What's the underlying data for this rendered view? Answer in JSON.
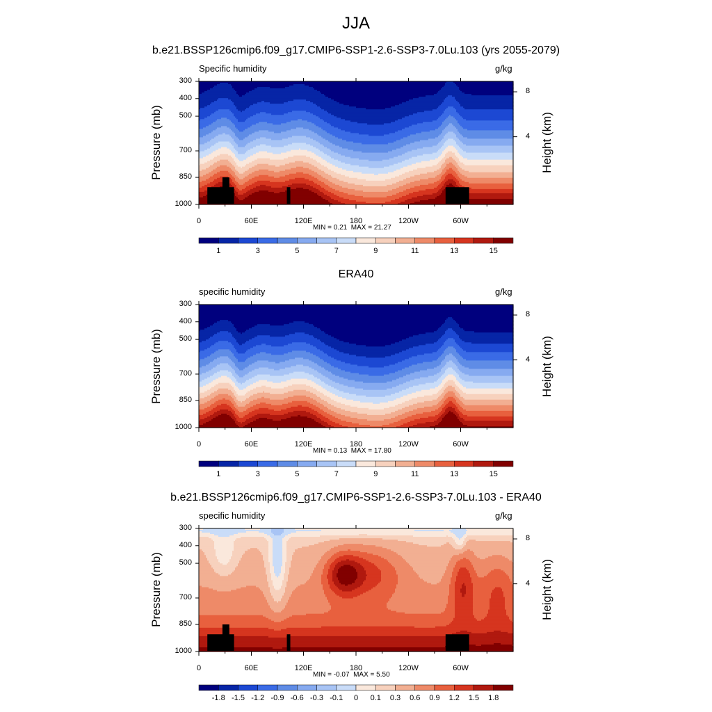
{
  "figure_title": "JJA",
  "palette_seq": [
    "#00007e",
    "#0625a6",
    "#1c48d3",
    "#3a6be6",
    "#5f8ce6",
    "#86aaf0",
    "#a8c4f5",
    "#c9dcf8",
    "#fae8dc",
    "#f7d1bd",
    "#f2af92",
    "#ee8a68",
    "#e8603e",
    "#d6351f",
    "#b0190f",
    "#810000"
  ],
  "palette_div": [
    "#00007e",
    "#0625a6",
    "#1c48d3",
    "#3a6be6",
    "#5f8ce6",
    "#86aaf0",
    "#a8c4f5",
    "#c9dcf8",
    "#fae8dc",
    "#f7d1bd",
    "#f2af92",
    "#ee8a68",
    "#e8603e",
    "#d6351f",
    "#b0190f",
    "#810000"
  ],
  "chart_data": [
    {
      "type": "heatmap",
      "title": "b.e21.BSSP126cmip6.f09_g17.CMIP6-SSP1-2.6-SSP3-7.0Lu.103 (yrs 2055-2079)",
      "left_label": "Specific humidity",
      "units": "g/kg",
      "ylabel": "Pressure (mb)",
      "ylabel_right": "Height (km)",
      "x_ticks": [
        "0",
        "60E",
        "120E",
        "180",
        "120W",
        "60W"
      ],
      "y_ticks": [
        "300",
        "400",
        "500",
        "700",
        "850",
        "1000"
      ],
      "right_ticks": [
        "8",
        "4"
      ],
      "min_label": "MIN =",
      "min_value": "0.21",
      "max_label": "MAX =",
      "max_value": "21.27",
      "colorbar_labels": [
        "1",
        "3",
        "5",
        "7",
        "9",
        "11",
        "13",
        "15"
      ],
      "has_topography": true
    },
    {
      "type": "heatmap",
      "title": "ERA40",
      "left_label": "specific humidity",
      "units": "g/kg",
      "ylabel": "Pressure (mb)",
      "ylabel_right": "Height (km)",
      "x_ticks": [
        "0",
        "60E",
        "120E",
        "180",
        "120W",
        "60W"
      ],
      "y_ticks": [
        "300",
        "400",
        "500",
        "700",
        "850",
        "1000"
      ],
      "right_ticks": [
        "8",
        "4"
      ],
      "min_label": "MIN =",
      "min_value": "0.13",
      "max_label": "MAX =",
      "max_value": "17.80",
      "colorbar_labels": [
        "1",
        "3",
        "5",
        "7",
        "9",
        "11",
        "13",
        "15"
      ],
      "has_topography": false
    },
    {
      "type": "heatmap",
      "title": "b.e21.BSSP126cmip6.f09_g17.CMIP6-SSP1-2.6-SSP3-7.0Lu.103 - ERA40",
      "left_label": "specific humidity",
      "units": "g/kg",
      "ylabel": "Pressure (mb)",
      "ylabel_right": "Height (km)",
      "x_ticks": [
        "0",
        "60E",
        "120E",
        "180",
        "120W",
        "60W"
      ],
      "y_ticks": [
        "300",
        "400",
        "500",
        "700",
        "850",
        "1000"
      ],
      "right_ticks": [
        "8",
        "4"
      ],
      "min_label": "MIN =",
      "min_value": "-0.07",
      "max_label": "MAX =",
      "max_value": "5.50",
      "colorbar_labels": [
        "-1.8",
        "-1.5",
        "-1.2",
        "-0.9",
        "-0.6",
        "-0.3",
        "-0.1",
        "0",
        "0.1",
        "0.3",
        "0.6",
        "0.9",
        "1.2",
        "1.5",
        "1.8"
      ],
      "has_topography": true
    }
  ]
}
